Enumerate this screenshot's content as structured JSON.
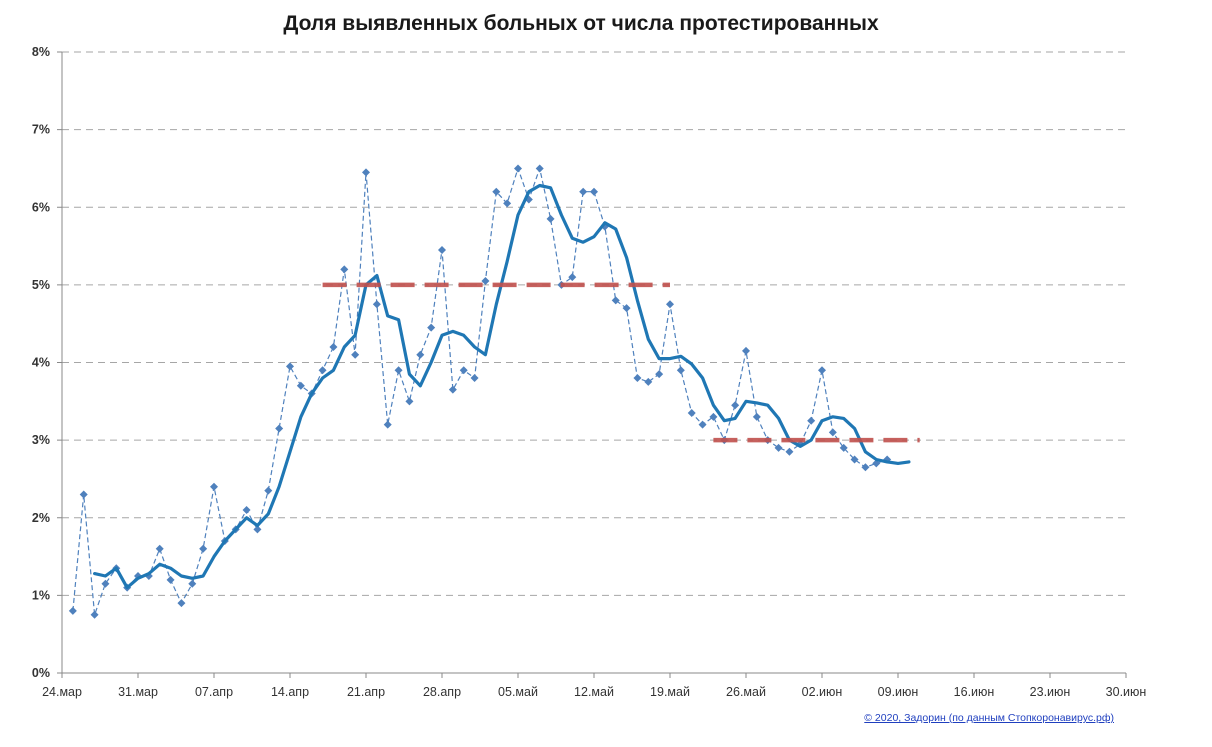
{
  "chart_data": {
    "type": "line",
    "title": "Доля выявленных больных от числа протестированных",
    "credit": "© 2020, Задорин (по данным Стопкоронавирус.рф)",
    "x_ticks": [
      "24.мар",
      "31.мар",
      "07.апр",
      "14.апр",
      "21.апр",
      "28.апр",
      "05.май",
      "12.май",
      "19.май",
      "26.май",
      "02.июн",
      "09.июн",
      "16.июн",
      "23.июн",
      "30.июн"
    ],
    "y_ticks": [
      "0%",
      "1%",
      "2%",
      "3%",
      "4%",
      "5%",
      "6%",
      "7%",
      "8%"
    ],
    "ylim": [
      0,
      8
    ],
    "xlim": [
      "2020-03-24",
      "2020-06-30"
    ],
    "grid": "horizontal-dashed",
    "colors": {
      "daily": "#4f81bd",
      "smoothed": "#1f77b4",
      "reference": "#c0504d",
      "grid": "#a6a6a6"
    },
    "series": [
      {
        "style": "dashed-with-diamond-markers",
        "x": [
          "2020-03-25",
          "2020-03-26",
          "2020-03-27",
          "2020-03-28",
          "2020-03-29",
          "2020-03-30",
          "2020-03-31",
          "2020-04-01",
          "2020-04-02",
          "2020-04-03",
          "2020-04-04",
          "2020-04-05",
          "2020-04-06",
          "2020-04-07",
          "2020-04-08",
          "2020-04-09",
          "2020-04-10",
          "2020-04-11",
          "2020-04-12",
          "2020-04-13",
          "2020-04-14",
          "2020-04-15",
          "2020-04-16",
          "2020-04-17",
          "2020-04-18",
          "2020-04-19",
          "2020-04-20",
          "2020-04-21",
          "2020-04-22",
          "2020-04-23",
          "2020-04-24",
          "2020-04-25",
          "2020-04-26",
          "2020-04-27",
          "2020-04-28",
          "2020-04-29",
          "2020-04-30",
          "2020-05-01",
          "2020-05-02",
          "2020-05-03",
          "2020-05-04",
          "2020-05-05",
          "2020-05-06",
          "2020-05-07",
          "2020-05-08",
          "2020-05-09",
          "2020-05-10",
          "2020-05-11",
          "2020-05-12",
          "2020-05-13",
          "2020-05-14",
          "2020-05-15",
          "2020-05-16",
          "2020-05-17",
          "2020-05-18",
          "2020-05-19",
          "2020-05-20",
          "2020-05-21",
          "2020-05-22",
          "2020-05-23",
          "2020-05-24",
          "2020-05-25",
          "2020-05-26",
          "2020-05-27",
          "2020-05-28",
          "2020-05-29",
          "2020-05-30",
          "2020-05-31",
          "2020-06-01",
          "2020-06-02",
          "2020-06-03",
          "2020-06-04",
          "2020-06-05",
          "2020-06-06",
          "2020-06-07",
          "2020-06-08"
        ],
        "values": [
          0.8,
          2.3,
          0.75,
          1.15,
          1.35,
          1.1,
          1.25,
          1.25,
          1.6,
          1.2,
          0.9,
          1.15,
          1.6,
          2.4,
          1.7,
          1.85,
          2.1,
          1.85,
          2.35,
          3.15,
          3.95,
          3.7,
          3.6,
          3.9,
          4.2,
          5.2,
          4.1,
          6.45,
          4.75,
          3.2,
          3.9,
          3.5,
          4.1,
          4.45,
          5.45,
          3.65,
          3.9,
          3.8,
          5.05,
          6.2,
          6.05,
          6.5,
          6.1,
          6.5,
          5.85,
          5.0,
          5.1,
          6.2,
          6.2,
          5.75,
          4.8,
          4.7,
          3.8,
          3.75,
          3.85,
          4.75,
          3.9,
          3.35,
          3.2,
          3.3,
          3.0,
          3.45,
          4.15,
          3.3,
          3.0,
          2.9,
          2.85,
          2.95,
          3.25,
          3.9,
          3.1,
          2.9,
          2.75,
          2.65,
          2.7,
          2.75
        ]
      },
      {
        "style": "solid-smoothed",
        "x": [
          "2020-03-27",
          "2020-03-28",
          "2020-03-29",
          "2020-03-30",
          "2020-03-31",
          "2020-04-01",
          "2020-04-02",
          "2020-04-03",
          "2020-04-04",
          "2020-04-05",
          "2020-04-06",
          "2020-04-07",
          "2020-04-08",
          "2020-04-09",
          "2020-04-10",
          "2020-04-11",
          "2020-04-12",
          "2020-04-13",
          "2020-04-14",
          "2020-04-15",
          "2020-04-16",
          "2020-04-17",
          "2020-04-18",
          "2020-04-19",
          "2020-04-20",
          "2020-04-21",
          "2020-04-22",
          "2020-04-23",
          "2020-04-24",
          "2020-04-25",
          "2020-04-26",
          "2020-04-27",
          "2020-04-28",
          "2020-04-29",
          "2020-04-30",
          "2020-05-01",
          "2020-05-02",
          "2020-05-03",
          "2020-05-04",
          "2020-05-05",
          "2020-05-06",
          "2020-05-07",
          "2020-05-08",
          "2020-05-09",
          "2020-05-10",
          "2020-05-11",
          "2020-05-12",
          "2020-05-13",
          "2020-05-14",
          "2020-05-15",
          "2020-05-16",
          "2020-05-17",
          "2020-05-18",
          "2020-05-19",
          "2020-05-20",
          "2020-05-21",
          "2020-05-22",
          "2020-05-23",
          "2020-05-24",
          "2020-05-25",
          "2020-05-26",
          "2020-05-27",
          "2020-05-28",
          "2020-05-29",
          "2020-05-30",
          "2020-05-31",
          "2020-06-01",
          "2020-06-02",
          "2020-06-03",
          "2020-06-04",
          "2020-06-05",
          "2020-06-06",
          "2020-06-07",
          "2020-06-08",
          "2020-06-09",
          "2020-06-10"
        ],
        "values": [
          1.28,
          1.25,
          1.35,
          1.1,
          1.22,
          1.28,
          1.4,
          1.35,
          1.25,
          1.22,
          1.25,
          1.5,
          1.7,
          1.85,
          2.0,
          1.9,
          2.05,
          2.4,
          2.85,
          3.3,
          3.6,
          3.8,
          3.9,
          4.2,
          4.35,
          5.0,
          5.12,
          4.6,
          4.55,
          3.85,
          3.7,
          4.0,
          4.35,
          4.4,
          4.35,
          4.2,
          4.1,
          4.75,
          5.3,
          5.9,
          6.2,
          6.28,
          6.25,
          5.9,
          5.6,
          5.55,
          5.62,
          5.8,
          5.72,
          5.35,
          4.8,
          4.3,
          4.05,
          4.05,
          4.08,
          3.98,
          3.8,
          3.45,
          3.25,
          3.28,
          3.5,
          3.48,
          3.45,
          3.28,
          3.0,
          2.92,
          3.0,
          3.25,
          3.3,
          3.28,
          3.15,
          2.85,
          2.75,
          2.72,
          2.7,
          2.72
        ]
      },
      {
        "style": "thick-dashed-reference",
        "x": [
          "2020-04-17",
          "2020-05-19"
        ],
        "values": [
          5.0,
          5.0
        ]
      },
      {
        "style": "thick-dashed-reference",
        "x": [
          "2020-05-23",
          "2020-06-11"
        ],
        "values": [
          3.0,
          3.0
        ]
      }
    ]
  }
}
